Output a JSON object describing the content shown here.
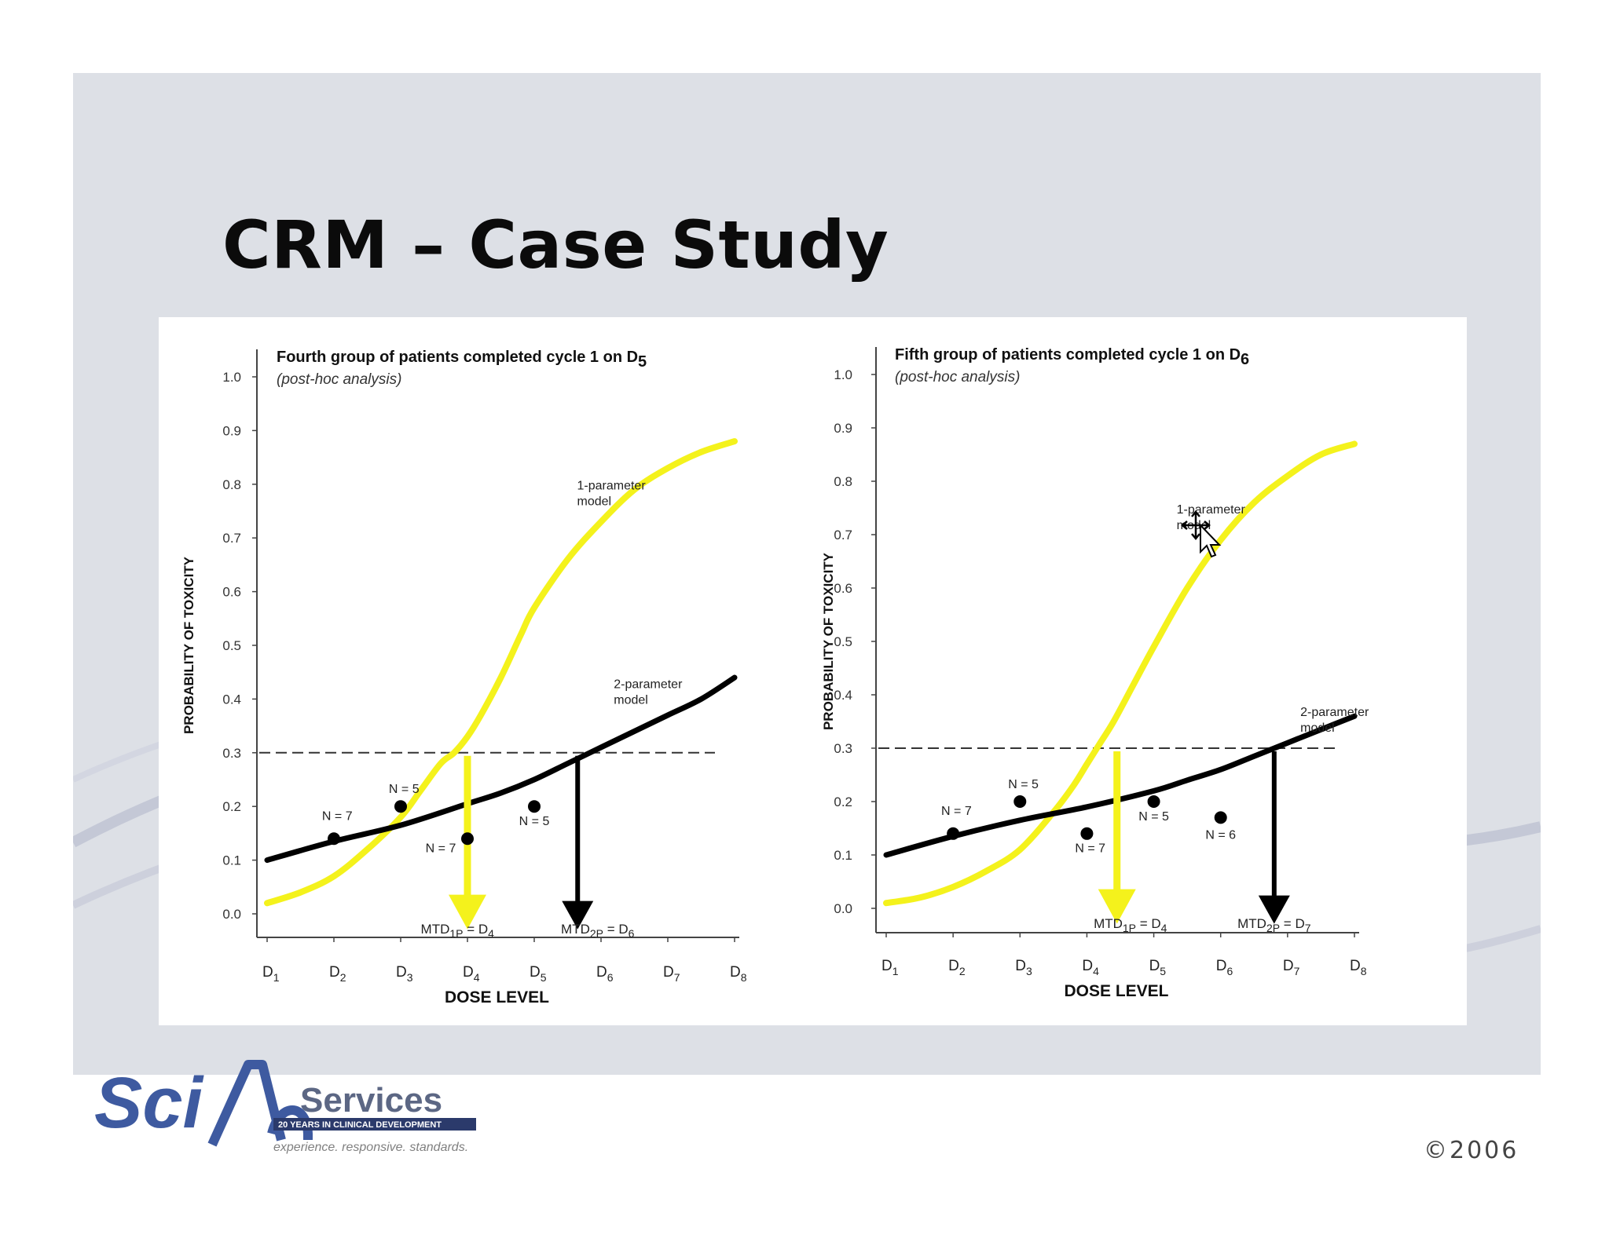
{
  "slide": {
    "title": "CRM – Case Study",
    "copyright": "©2006",
    "logo": {
      "brand": "Sci",
      "brand2": "Services",
      "tagline_bar": "20 YEARS IN CLINICAL DEVELOPMENT",
      "slogan": "experience. responsive. standards."
    }
  },
  "colors": {
    "yellow": "#f4f21c",
    "black": "#000000",
    "slide_bg": "#dde0e6"
  },
  "chart_data": [
    {
      "type": "line",
      "title": "Fourth  group of patients completed cycle 1 on D",
      "title_sub": "5",
      "subtitle": "(post-hoc analysis)",
      "xlabel": "DOSE LEVEL",
      "ylabel": "PROBABILITY OF TOXICITY",
      "categories": [
        "D1",
        "D2",
        "D3",
        "D4",
        "D5",
        "D6",
        "D7",
        "D8"
      ],
      "yticks": [
        "0.0",
        "0.1",
        "0.2",
        "0.3",
        "0.4",
        "0.5",
        "0.6",
        "0.7",
        "0.8",
        "0.9",
        "1.0"
      ],
      "ylim": [
        0,
        1
      ],
      "threshold": 0.3,
      "series": [
        {
          "name": "1-parameter model",
          "label_lines": [
            "1-parameter",
            "model"
          ],
          "label_at": [
            5.7,
            0.79
          ],
          "color": "#f4f21c",
          "x": [
            1,
            1.5,
            2,
            2.5,
            3,
            3.3,
            3.6,
            3.8,
            4,
            4.2,
            4.5,
            4.8,
            5,
            5.5,
            6,
            6.5,
            7,
            7.5,
            8
          ],
          "values": [
            0.02,
            0.04,
            0.07,
            0.12,
            0.18,
            0.23,
            0.28,
            0.3,
            0.33,
            0.37,
            0.44,
            0.52,
            0.57,
            0.66,
            0.73,
            0.79,
            0.83,
            0.86,
            0.88
          ]
        },
        {
          "name": "2-parameter model",
          "label_lines": [
            "2-parameter",
            "model"
          ],
          "label_at": [
            6.25,
            0.42
          ],
          "color": "#000000",
          "x": [
            1,
            2,
            3,
            4,
            4.5,
            5,
            5.5,
            6,
            6.5,
            7,
            7.5,
            8
          ],
          "values": [
            0.1,
            0.135,
            0.165,
            0.205,
            0.225,
            0.25,
            0.28,
            0.31,
            0.34,
            0.37,
            0.4,
            0.44
          ]
        }
      ],
      "points": [
        {
          "x": 2,
          "y": 0.14,
          "label": "N = 7",
          "lx": 2.05,
          "ly": 0.175
        },
        {
          "x": 3,
          "y": 0.2,
          "label": "N = 5",
          "lx": 3.05,
          "ly": 0.225
        },
        {
          "x": 4,
          "y": 0.14,
          "label": "N = 7",
          "lx": 3.6,
          "ly": 0.115
        },
        {
          "x": 5,
          "y": 0.2,
          "label": "N = 5",
          "lx": 5.0,
          "ly": 0.165
        }
      ],
      "mtd": [
        {
          "name": "MTD1P",
          "main": "MTD",
          "sub": "1P",
          "rest": " = D",
          "sub2": "4",
          "arrow_x": 4.0,
          "color": "#f4f21c",
          "label_x": 3.85
        },
        {
          "name": "MTD2P",
          "main": "MTD",
          "sub": "2P",
          "rest": " = D",
          "sub2": "6",
          "arrow_x": 5.65,
          "color": "#000000",
          "label_x": 5.95
        }
      ]
    },
    {
      "type": "line",
      "title": "Fifth  group of patients completed cycle 1 on D",
      "title_sub": "6",
      "subtitle": "(post-hoc analysis)",
      "xlabel": "DOSE LEVEL",
      "ylabel": "PROBABILITY OF TOXICITY",
      "categories": [
        "D1",
        "D2",
        "D3",
        "D4",
        "D5",
        "D6",
        "D7",
        "D8"
      ],
      "yticks": [
        "0.0",
        "0.1",
        "0.2",
        "0.3",
        "0.4",
        "0.5",
        "0.6",
        "0.7",
        "0.8",
        "0.9",
        "1.0"
      ],
      "ylim": [
        0,
        1
      ],
      "threshold": 0.3,
      "series": [
        {
          "name": "1-parameter model",
          "label_lines": [
            "1-parameter",
            "model"
          ],
          "label_at": [
            5.4,
            0.74
          ],
          "color": "#f4f21c",
          "x": [
            1,
            1.5,
            2,
            2.5,
            3,
            3.5,
            3.8,
            4,
            4.2,
            4.4,
            4.7,
            5,
            5.5,
            6,
            6.5,
            7,
            7.5,
            8
          ],
          "values": [
            0.01,
            0.02,
            0.04,
            0.07,
            0.11,
            0.18,
            0.23,
            0.27,
            0.31,
            0.35,
            0.42,
            0.49,
            0.6,
            0.69,
            0.76,
            0.81,
            0.85,
            0.87
          ]
        },
        {
          "name": "2-parameter model",
          "label_lines": [
            "2-parameter",
            "model"
          ],
          "label_at": [
            7.25,
            0.36
          ],
          "color": "#000000",
          "x": [
            1,
            2,
            3,
            4,
            5,
            5.5,
            6,
            6.5,
            7,
            7.5,
            8
          ],
          "values": [
            0.1,
            0.135,
            0.165,
            0.19,
            0.22,
            0.24,
            0.26,
            0.285,
            0.31,
            0.335,
            0.36
          ]
        }
      ],
      "points": [
        {
          "x": 2,
          "y": 0.14,
          "label": "N = 7",
          "lx": 2.05,
          "ly": 0.175
        },
        {
          "x": 3,
          "y": 0.2,
          "label": "N = 5",
          "lx": 3.05,
          "ly": 0.225
        },
        {
          "x": 4,
          "y": 0.14,
          "label": "N = 7",
          "lx": 4.05,
          "ly": 0.105
        },
        {
          "x": 5,
          "y": 0.2,
          "label": "N = 5",
          "lx": 5.0,
          "ly": 0.165
        },
        {
          "x": 6,
          "y": 0.17,
          "label": "N = 6",
          "lx": 6.0,
          "ly": 0.13
        }
      ],
      "mtd": [
        {
          "name": "MTD1P",
          "main": "MTD",
          "sub": "1P",
          "rest": " = D",
          "sub2": "4",
          "arrow_x": 4.45,
          "color": "#f4f21c",
          "label_x": 4.65
        },
        {
          "name": "MTD2P",
          "main": "MTD",
          "sub": "2P",
          "rest": " = D",
          "sub2": "7",
          "arrow_x": 6.8,
          "color": "#000000",
          "label_x": 6.8
        }
      ]
    }
  ]
}
